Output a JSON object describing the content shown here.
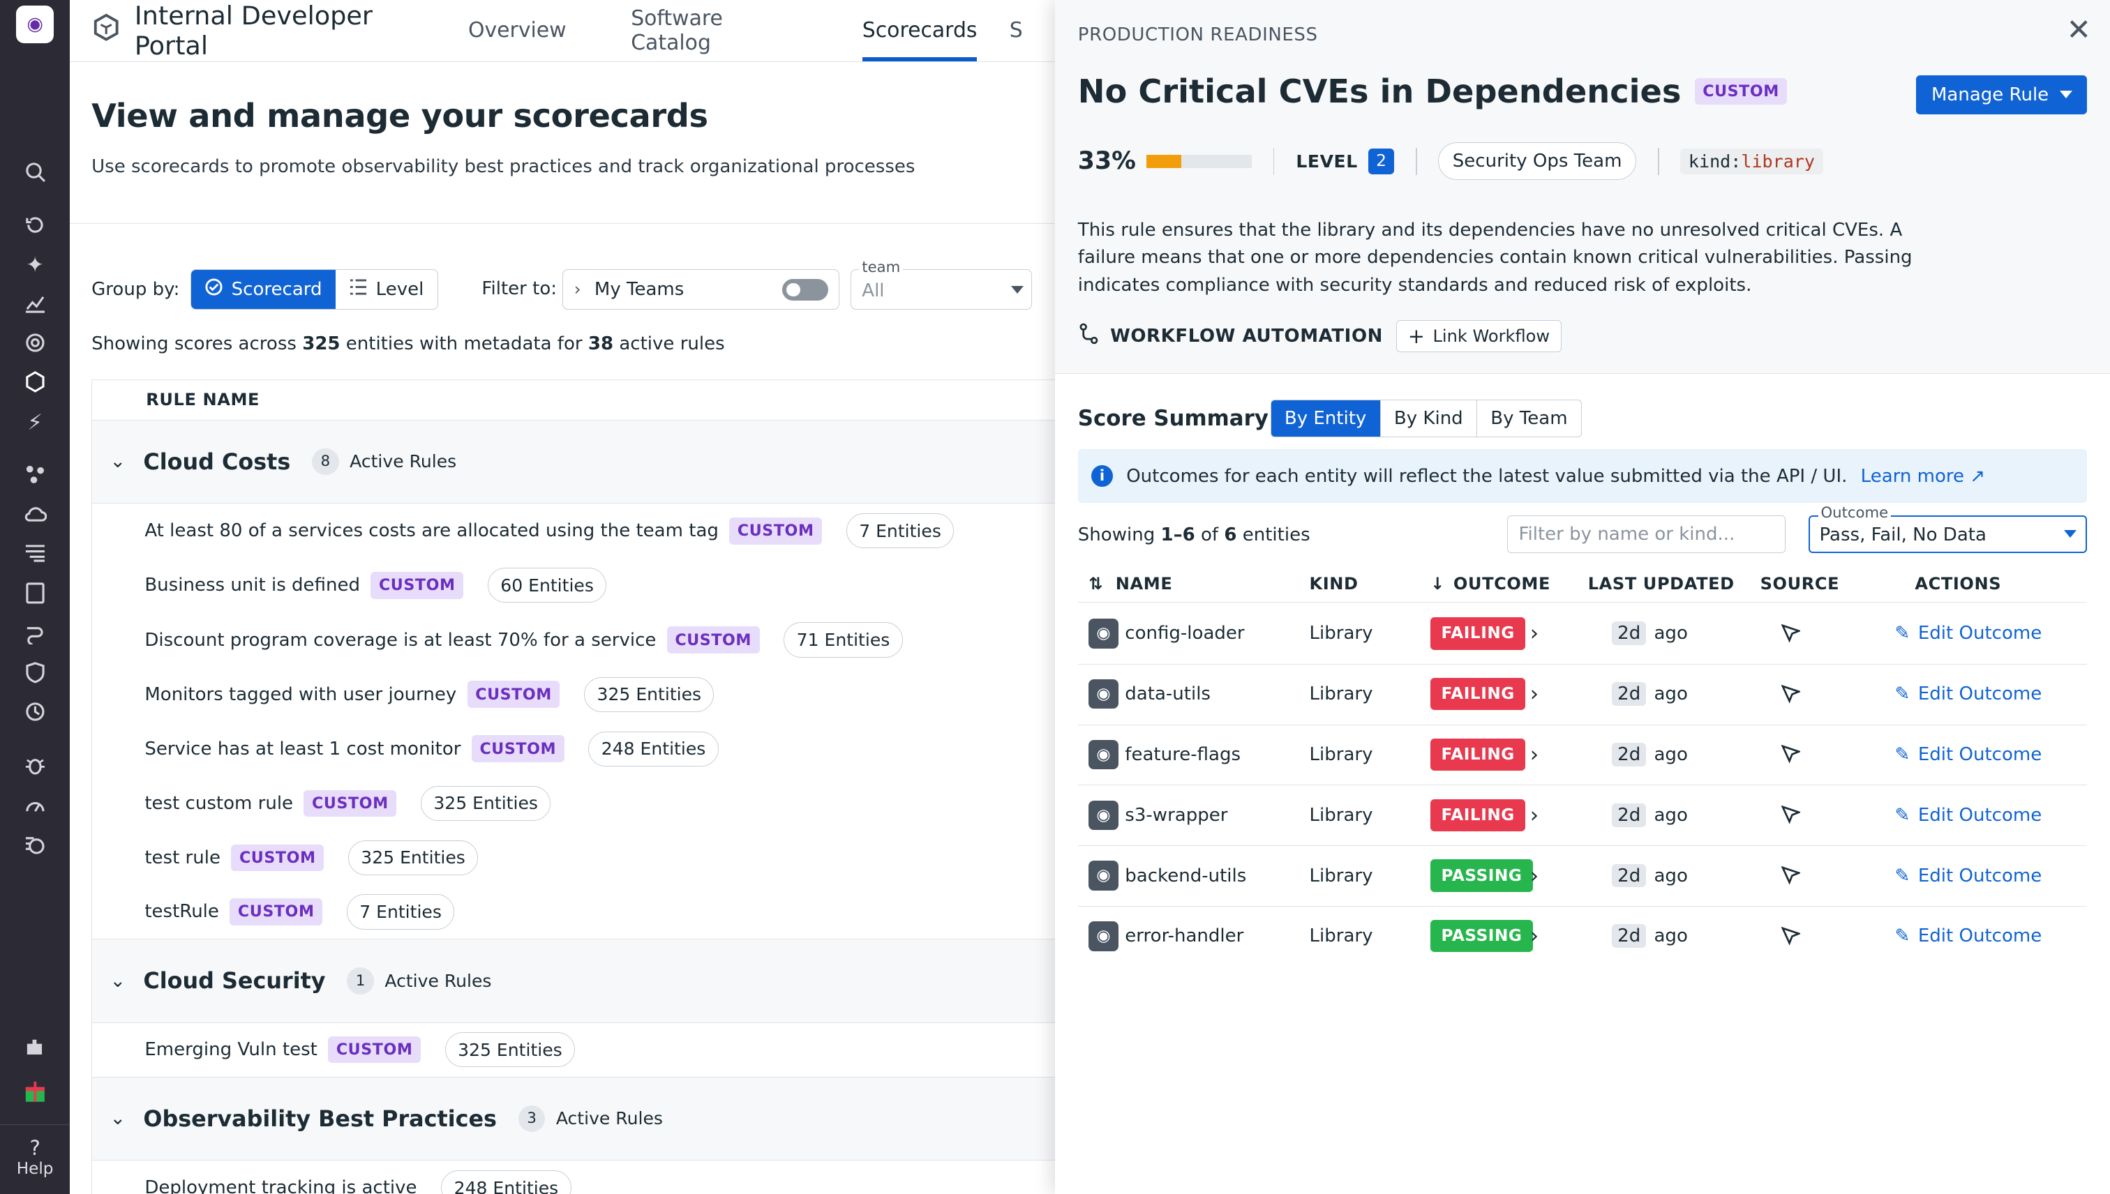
{
  "nav": {
    "help_label": "Help",
    "icons": [
      "datadog-logo",
      "search-icon",
      "history-icon",
      "sparkle-icon",
      "chart-icon",
      "watchdog-icon",
      "cube-icon",
      "bolt-icon",
      "share-icon",
      "cloud-icon",
      "logs-icon",
      "notebook-icon",
      "synthetics-icon",
      "shield-icon",
      "sync-icon",
      "bug-icon",
      "gauge-icon",
      "sliders-icon",
      "puzzle-icon",
      "gift-icon",
      "help-icon"
    ]
  },
  "topbar": {
    "title": "Internal Developer Portal",
    "tabs": [
      "Overview",
      "Software Catalog",
      "Scorecards",
      "S"
    ],
    "active_tab": "Scorecards"
  },
  "page": {
    "title": "View and manage your scorecards",
    "subtitle": "Use scorecards to promote observability best practices and track organizational processes"
  },
  "controls": {
    "group_by_label": "Group by:",
    "group_scorecard": "Scorecard",
    "group_level": "Level",
    "filter_label": "Filter to:",
    "my_teams": "My Teams",
    "team_label": "team",
    "team_value": "All"
  },
  "showing": {
    "pre": "Showing scores across ",
    "entities": "325",
    "mid": " entities with metadata for ",
    "rules": "38",
    "post": " active rules"
  },
  "table": {
    "header": "RULE NAME",
    "custom_label": "CUSTOM",
    "groups": [
      {
        "name": "Cloud Costs",
        "count": "8",
        "active": "Active Rules",
        "rules": [
          {
            "name": "At least 80 of a services costs are allocated using the team tag",
            "entities": "7 Entities"
          },
          {
            "name": "Business unit is defined",
            "entities": "60 Entities"
          },
          {
            "name": "Discount program coverage is at least 70% for a service",
            "entities": "71 Entities"
          },
          {
            "name": "Monitors tagged with user journey",
            "entities": "325 Entities"
          },
          {
            "name": "Service has at least 1 cost monitor",
            "entities": "248 Entities"
          },
          {
            "name": "test custom rule",
            "entities": "325 Entities"
          },
          {
            "name": "test rule",
            "entities": "325 Entities"
          },
          {
            "name": "testRule",
            "entities": "7 Entities"
          }
        ]
      },
      {
        "name": "Cloud Security",
        "count": "1",
        "active": "Active Rules",
        "rules": [
          {
            "name": "Emerging Vuln test",
            "entities": "325 Entities"
          }
        ]
      },
      {
        "name": "Observability Best Practices",
        "count": "3",
        "active": "Active Rules",
        "rules": [
          {
            "name": "Deployment tracking is active",
            "entities": "248 Entities"
          }
        ]
      }
    ]
  },
  "panel": {
    "eyebrow": "PRODUCTION READINESS",
    "title": "No Critical CVEs in Dependencies",
    "custom": "CUSTOM",
    "manage": "Manage Rule",
    "pct": "33%",
    "pct_fraction": 0.33,
    "level_label": "LEVEL",
    "level": "2",
    "team": "Security Ops Team",
    "kind_key": "kind",
    "kind_val": "library",
    "description": "This rule ensures that the library and its dependencies have no unresolved critical CVEs. A failure means that one or more dependencies contain known critical vulnerabilities. Passing indicates compliance with security standards and reduced risk of exploits.",
    "workflow": "WORKFLOW AUTOMATION",
    "link_workflow": "Link Workflow",
    "score_summary": "Score Summary",
    "tabs": [
      "By Entity",
      "By Kind",
      "By Team"
    ],
    "info": "Outcomes for each entity will reflect the latest value submitted via the API / UI.",
    "learn_more": "Learn more",
    "showing_pre": "Showing ",
    "showing_range": "1–6",
    "showing_of": " of ",
    "showing_total": "6",
    "showing_post": " entities",
    "filter_placeholder": "Filter by name or kind...",
    "outcome_label": "Outcome",
    "outcome_value": "Pass, Fail, No Data",
    "columns": [
      "NAME",
      "KIND",
      "OUTCOME",
      "LAST UPDATED",
      "SOURCE",
      "ACTIONS"
    ],
    "rows": [
      {
        "name": "config-loader",
        "kind": "Library",
        "status": "FAILING",
        "d": "2d",
        "ago": "ago",
        "action": "Edit Outcome"
      },
      {
        "name": "data-utils",
        "kind": "Library",
        "status": "FAILING",
        "d": "2d",
        "ago": "ago",
        "action": "Edit Outcome"
      },
      {
        "name": "feature-flags",
        "kind": "Library",
        "status": "FAILING",
        "d": "2d",
        "ago": "ago",
        "action": "Edit Outcome"
      },
      {
        "name": "s3-wrapper",
        "kind": "Library",
        "status": "FAILING",
        "d": "2d",
        "ago": "ago",
        "action": "Edit Outcome"
      },
      {
        "name": "backend-utils",
        "kind": "Library",
        "status": "PASSING",
        "d": "2d",
        "ago": "ago",
        "action": "Edit Outcome"
      },
      {
        "name": "error-handler",
        "kind": "Library",
        "status": "PASSING",
        "d": "2d",
        "ago": "ago",
        "action": "Edit Outcome"
      }
    ]
  },
  "colors": {
    "accent": "#1063d4",
    "fail": "#e8394e",
    "pass": "#27b64e",
    "custom_bg": "#e8dcfb",
    "custom_fg": "#6b2fbf",
    "nav_bg": "#2b2a35"
  }
}
